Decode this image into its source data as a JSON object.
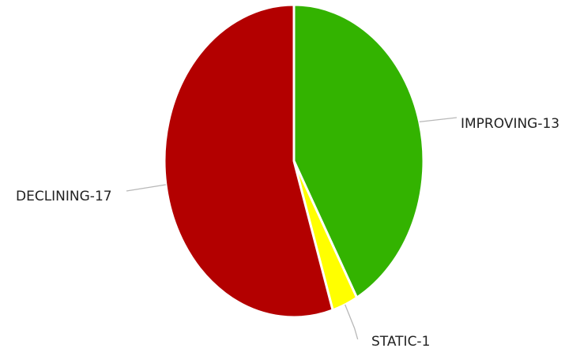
{
  "chart_data": {
    "type": "pie",
    "title": "",
    "slices": [
      {
        "category": "IMPROVING",
        "value": 13,
        "label": "IMPROVING-13",
        "color": "#33b300"
      },
      {
        "category": "STATIC",
        "value": 1,
        "label": "STATIC-1",
        "color": "#ffff00"
      },
      {
        "category": "DECLINING",
        "value": 17,
        "label": "DECLINING-17",
        "color": "#b30000"
      }
    ],
    "legend": "none",
    "labels": "outside-with-leader-lines"
  }
}
